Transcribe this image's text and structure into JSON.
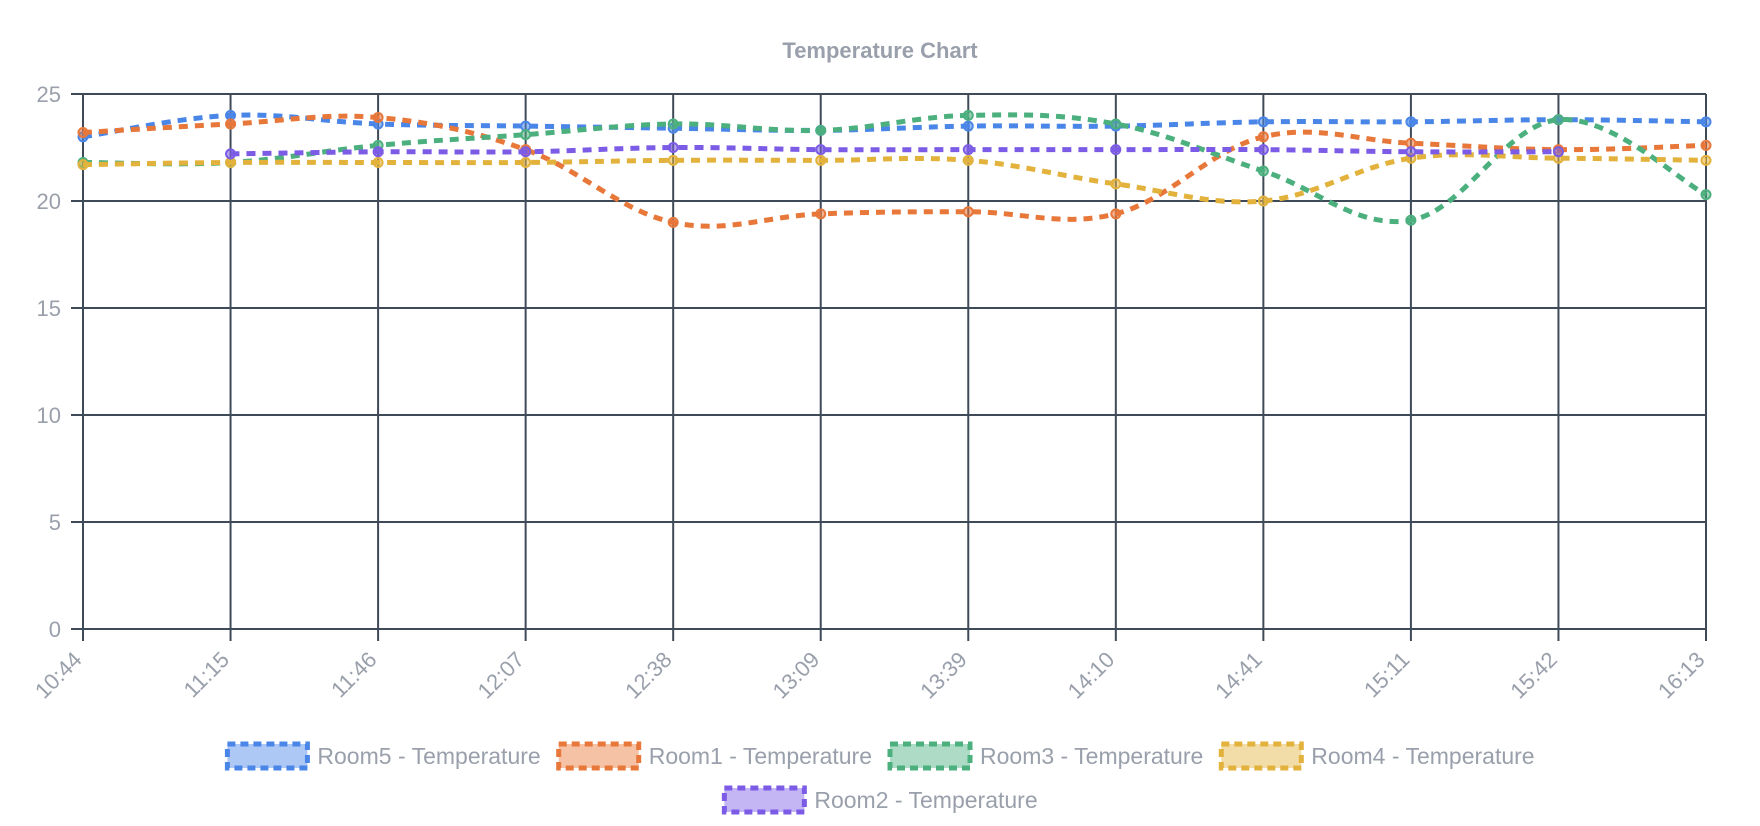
{
  "chart_data": {
    "type": "line",
    "title": "Temperature Chart",
    "xlabel": "",
    "ylabel": "",
    "categories": [
      "10:44",
      "11:15",
      "11:46",
      "12:07",
      "12:38",
      "13:09",
      "13:39",
      "14:10",
      "14:41",
      "15:11",
      "15:42",
      "16:13"
    ],
    "y_ticks": [
      0,
      5,
      10,
      15,
      20,
      25
    ],
    "ylim": [
      0,
      25
    ],
    "grid": true,
    "legend_position": "bottom",
    "line_style": "dashed",
    "series": [
      {
        "name": "Room5 - Temperature",
        "color": "#4a86e8",
        "values": [
          23.0,
          24.0,
          23.6,
          23.5,
          23.4,
          23.3,
          23.5,
          23.5,
          23.7,
          23.7,
          23.8,
          23.7
        ]
      },
      {
        "name": "Room1 - Temperature",
        "color": "#e8773a",
        "values": [
          23.2,
          23.6,
          23.9,
          22.4,
          19.0,
          19.4,
          19.5,
          19.4,
          23.0,
          22.7,
          22.4,
          22.6
        ]
      },
      {
        "name": "Room3 - Temperature",
        "color": "#4cb07e",
        "values": [
          21.8,
          21.8,
          22.6,
          23.1,
          23.6,
          23.3,
          24.0,
          23.6,
          21.4,
          19.1,
          23.8,
          20.3
        ]
      },
      {
        "name": "Room4 - Temperature",
        "color": "#e3b23c",
        "values": [
          21.7,
          21.8,
          21.8,
          21.8,
          21.9,
          21.9,
          21.9,
          20.8,
          20.0,
          22.0,
          22.0,
          21.9
        ]
      },
      {
        "name": "Room2 - Temperature",
        "color": "#7c5ce6",
        "values": [
          null,
          22.2,
          22.3,
          22.3,
          22.5,
          22.4,
          22.4,
          22.4,
          22.4,
          22.3,
          22.3,
          null
        ]
      }
    ]
  }
}
